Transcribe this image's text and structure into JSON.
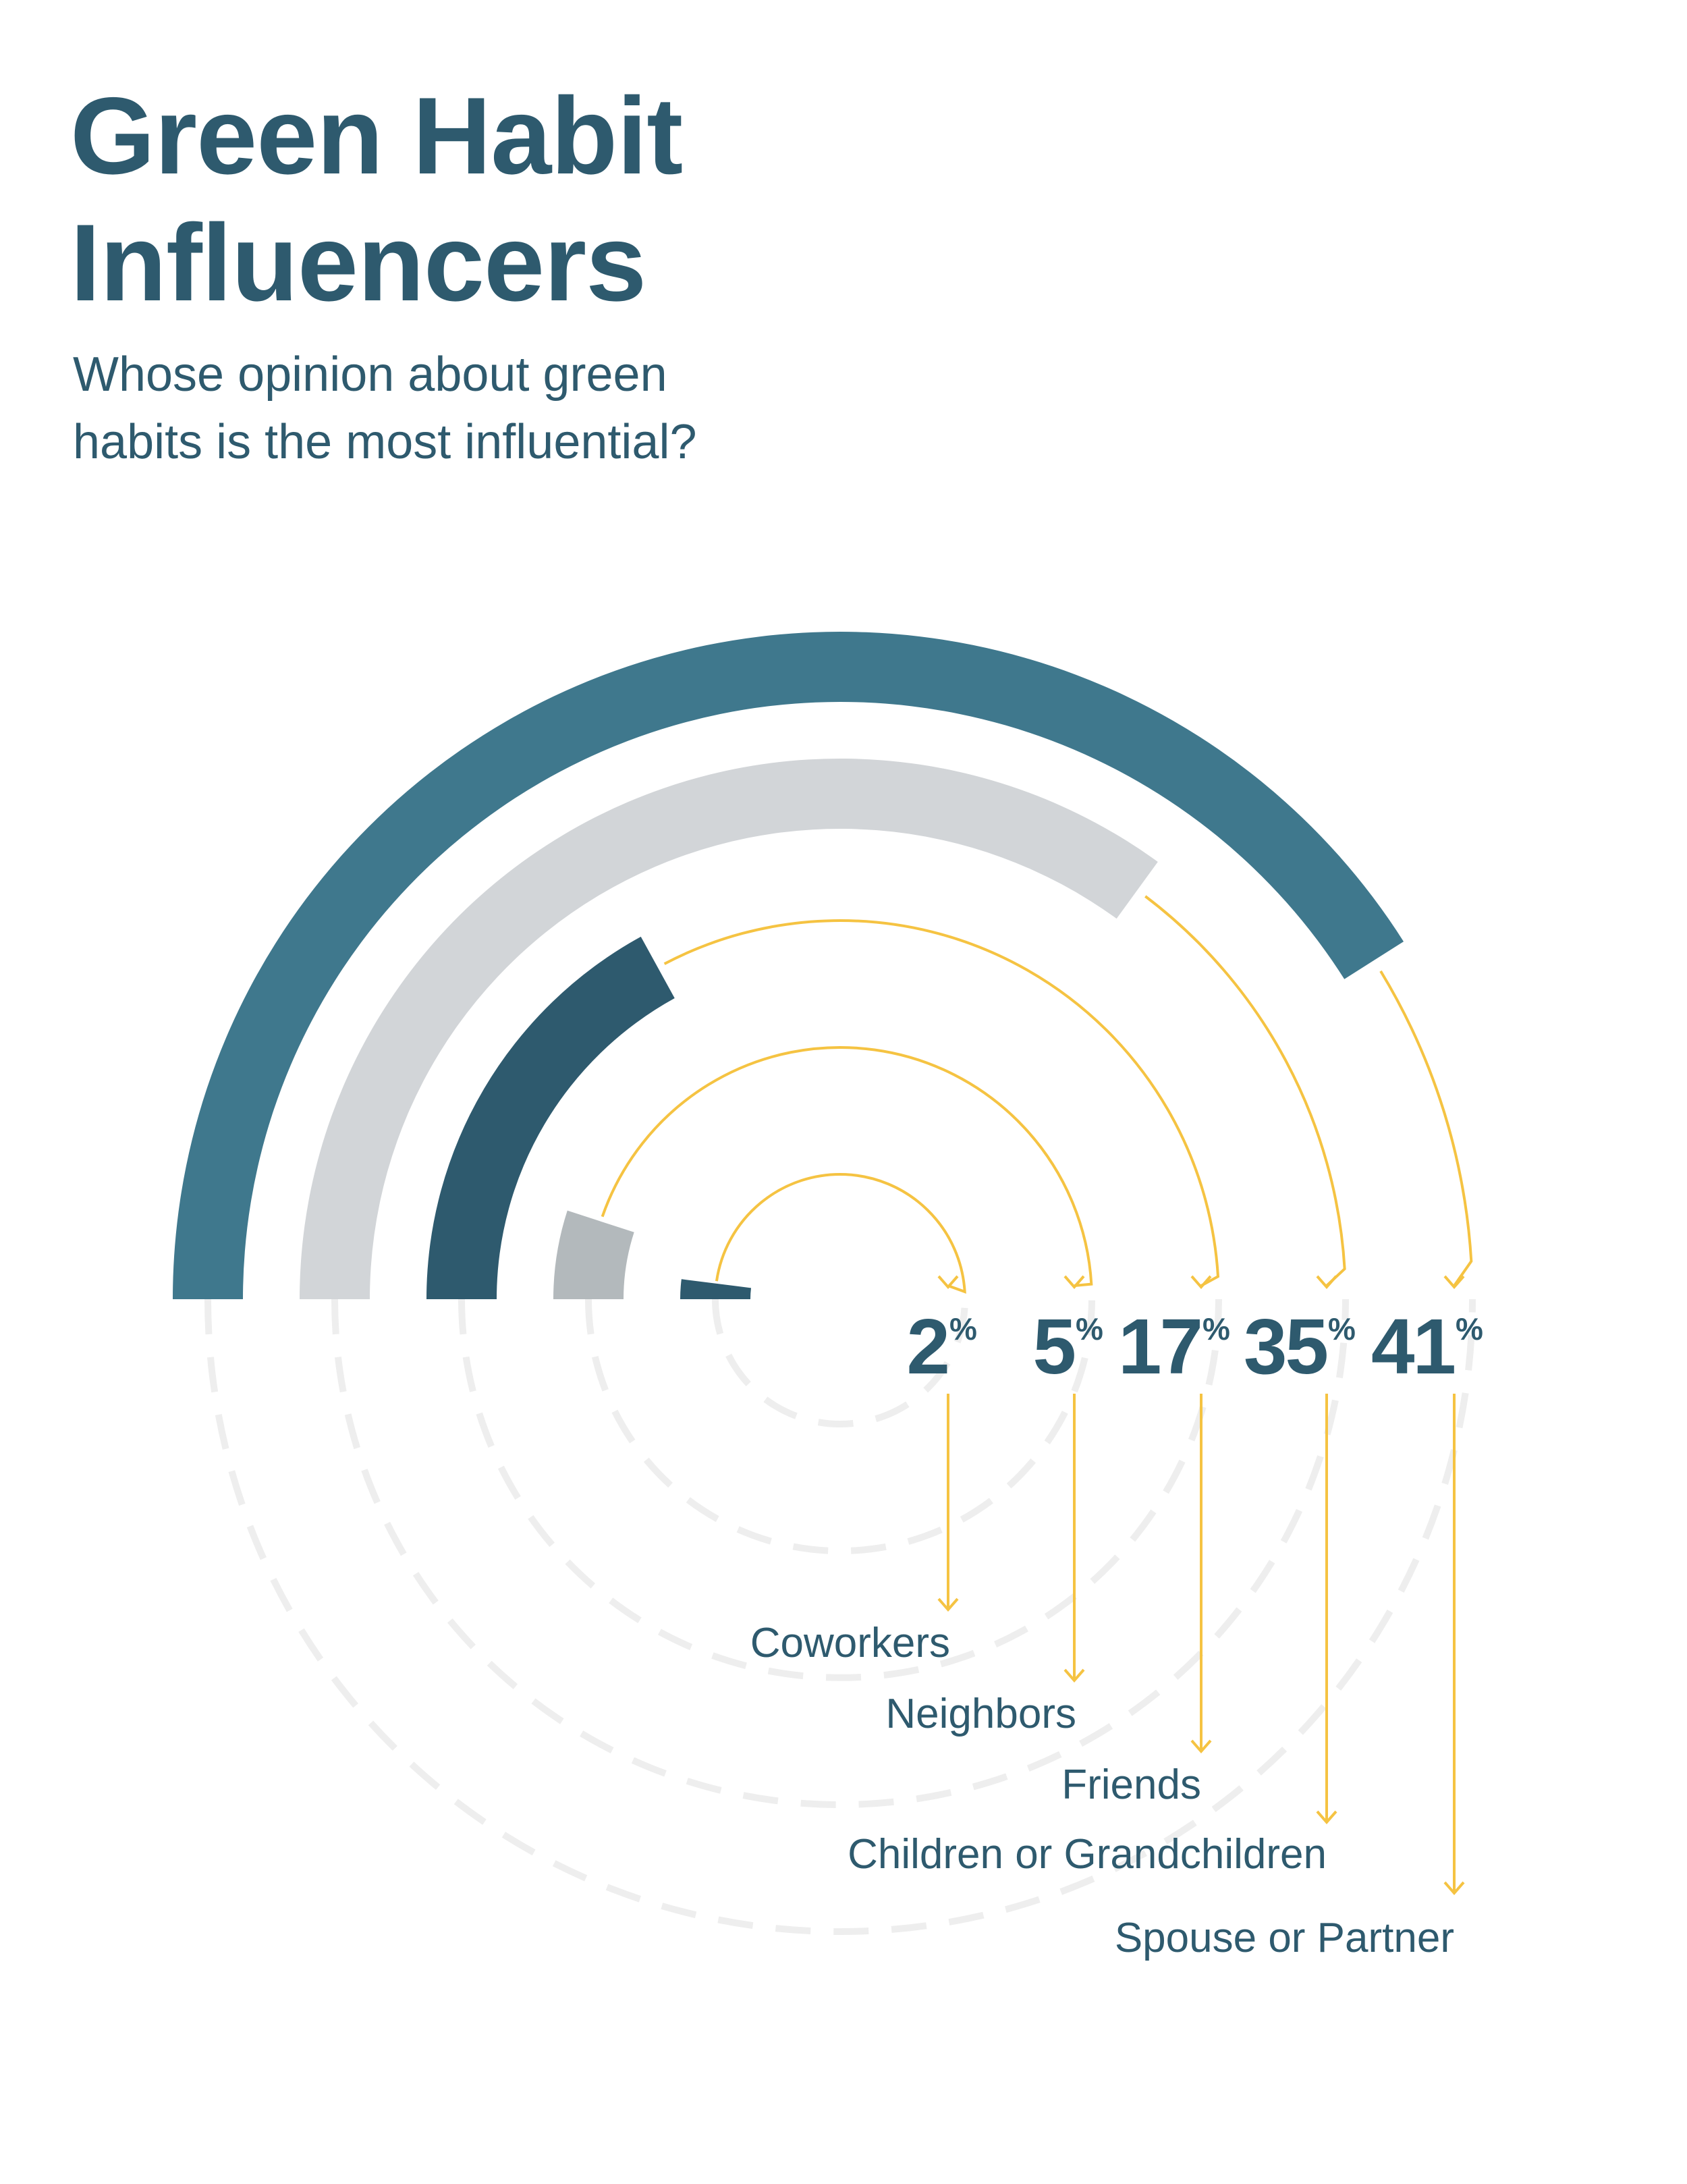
{
  "header": {
    "title_line1": "Green Habit",
    "title_line2": "Influencers",
    "subtitle_line1": "Whose opinion about green",
    "subtitle_line2": "habits is the most influential?"
  },
  "colors": {
    "title": "#2e5a6e",
    "connector": "#f5c342",
    "dashed_track": "#eeeeee"
  },
  "chart_data": {
    "type": "radial-bar",
    "title": "Whose opinion about green habits is the most influential?",
    "unit": "%",
    "percent_sign": "%",
    "series": [
      {
        "label": "Coworkers",
        "value": 2,
        "color": "#2e5a6e"
      },
      {
        "label": "Neighbors",
        "value": 5,
        "color": "#b3b9bc"
      },
      {
        "label": "Friends",
        "value": 17,
        "color": "#2e5a6e"
      },
      {
        "label": "Children or Grandchildren",
        "value": 35,
        "color": "#d2d5d8"
      },
      {
        "label": "Spouse or Partner",
        "value": 41,
        "color": "#3f788d"
      }
    ]
  }
}
